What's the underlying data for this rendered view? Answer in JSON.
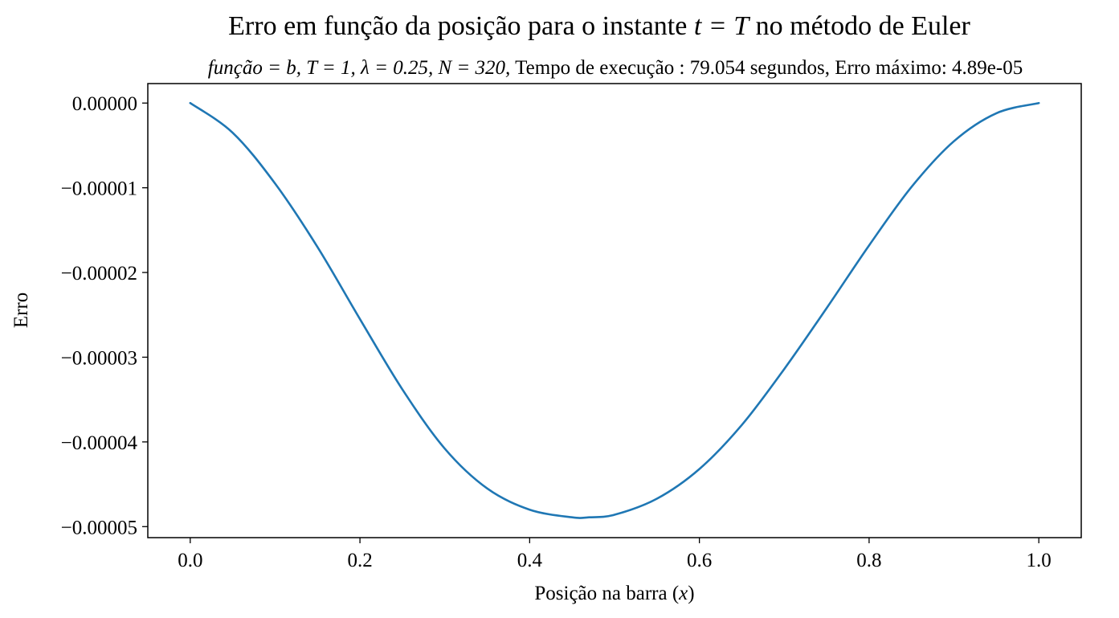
{
  "chart_data": {
    "type": "line",
    "title": "Erro em função da posição para o instante t = T no método de Euler",
    "title_parts": {
      "before": "Erro em função da posição para o instante ",
      "math": "t = T",
      "after": " no método de Euler"
    },
    "subtitle": "função = b,  T = 1,  λ = 0.25,  N = 320,  Tempo de execução :  79.054 segundos, Erro máximo: 4.89e-05",
    "subtitle_parts": {
      "funcao": "função = b,",
      "T": "T = 1,",
      "lambda": "λ = 0.25,",
      "N": "N = 320,",
      "tempo_label": "Tempo de execução :",
      "tempo_value": "79.054",
      "tempo_unit": "segundos, Erro máximo:",
      "erro_value": "4.89e-05"
    },
    "xlabel": "Posição na barra (x)",
    "xlabel_parts": {
      "text": "Posição na barra (",
      "math": "x",
      "close": ")"
    },
    "ylabel": "Erro",
    "xlim": [
      -0.05,
      1.05
    ],
    "ylim": [
      -5.13e-05,
      2.3e-06
    ],
    "x_ticks": [
      0.0,
      0.2,
      0.4,
      0.6,
      0.8,
      1.0
    ],
    "x_tick_labels": [
      "0.0",
      "0.2",
      "0.4",
      "0.6",
      "0.8",
      "1.0"
    ],
    "y_ticks": [
      0.0,
      -1e-05,
      -2e-05,
      -3e-05,
      -4e-05,
      -5e-05
    ],
    "y_tick_labels": [
      "0.00000",
      "−0.00001",
      "−0.00002",
      "−0.00003",
      "−0.00004",
      "−0.00005"
    ],
    "grid": false,
    "series": [
      {
        "color": "#1f77b4",
        "x": [
          0.0,
          0.05,
          0.1,
          0.15,
          0.2,
          0.25,
          0.3,
          0.35,
          0.4,
          0.45,
          0.47,
          0.5,
          0.55,
          0.6,
          0.65,
          0.7,
          0.75,
          0.8,
          0.85,
          0.9,
          0.95,
          1.0
        ],
        "y": [
          0.0,
          -3.5e-06,
          -9.5e-06,
          -1.7e-05,
          -2.55e-05,
          -3.38e-05,
          -4.08e-05,
          -4.55e-05,
          -4.8e-05,
          -4.89e-05,
          -4.89e-05,
          -4.86e-05,
          -4.67e-05,
          -4.32e-05,
          -3.8e-05,
          -3.14e-05,
          -2.42e-05,
          -1.68e-05,
          -9.9e-06,
          -4.5e-06,
          -1.2e-06,
          0.0
        ]
      }
    ]
  }
}
